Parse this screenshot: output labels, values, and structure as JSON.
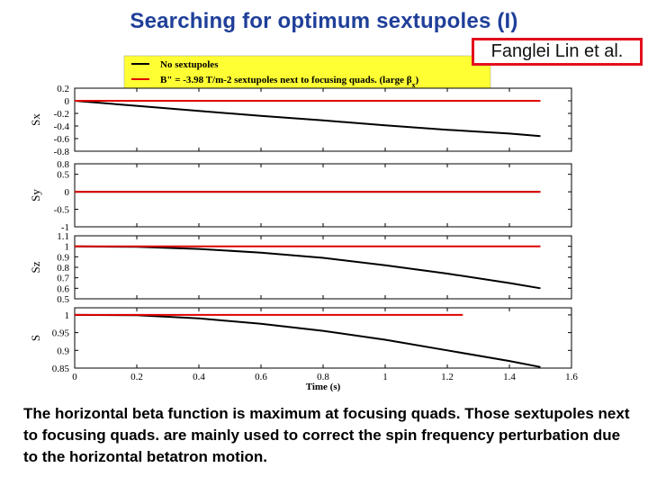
{
  "slide": {
    "title": "Searching for optimum sextupoles (I)",
    "author": "Fanglei Lin et al.",
    "caption": "The horizontal beta function is maximum at focusing quads. Those sextupoles next to focusing quads. are mainly used to correct the spin frequency perturbation due to the horizontal betatron motion."
  },
  "legend": {
    "entries": [
      {
        "label": "No sextupoles",
        "color": "#000000"
      },
      {
        "label": "B\" = -3.98 T/m-2 sextupoles next to focusing quads. (large β",
        "subscript": "x",
        "suffix": ")",
        "color": "#e00000"
      }
    ],
    "background": "#ffff33"
  },
  "colors": {
    "title": "#1f3f99",
    "author_border": "#e3101c",
    "series_no_sext": "#000000",
    "series_sext": "#e00000"
  },
  "chart_data": {
    "type": "line",
    "xlabel": "Time (s)",
    "x_ticks": [
      "0",
      "0.2",
      "0.4",
      "0.6",
      "0.8",
      "1",
      "1.2",
      "1.4",
      "1.6"
    ],
    "xlim": [
      0,
      1.6
    ],
    "panels": [
      {
        "ylabel": "Sx",
        "ylim": [
          -0.8,
          0.2
        ],
        "y_ticks": [
          "0.2",
          "0",
          "-0.2",
          "-0.4",
          "-0.6",
          "-0.8"
        ],
        "series": [
          {
            "x": [
              0,
              0.2,
              0.4,
              0.6,
              0.8,
              1.0,
              1.2,
              1.4,
              1.5
            ],
            "y": [
              0.0,
              -0.08,
              -0.16,
              -0.24,
              -0.31,
              -0.39,
              -0.46,
              -0.52,
              -0.56
            ]
          },
          {
            "x": [
              0,
              1.5
            ],
            "y": [
              0.0,
              0.0
            ]
          }
        ]
      },
      {
        "ylabel": "Sy",
        "ylim": [
          -1,
          0.8
        ],
        "y_ticks": [
          "0.8",
          "0.5",
          "0",
          "-0.5",
          "-1"
        ],
        "series": [
          {
            "x": [
              0,
              1.5
            ],
            "y": [
              0.0,
              0.0
            ]
          },
          {
            "x": [
              0,
              1.5
            ],
            "y": [
              0.0,
              0.0
            ]
          }
        ]
      },
      {
        "ylabel": "Sz",
        "ylim": [
          0.5,
          1.1
        ],
        "y_ticks": [
          "1.1",
          "1",
          "0.9",
          "0.8",
          "0.7",
          "0.6",
          "0.5"
        ],
        "series": [
          {
            "x": [
              0,
              0.2,
              0.4,
              0.6,
              0.8,
              1.0,
              1.2,
              1.4,
              1.5
            ],
            "y": [
              1.0,
              0.995,
              0.975,
              0.94,
              0.89,
              0.82,
              0.74,
              0.65,
              0.6
            ]
          },
          {
            "x": [
              0,
              1.5
            ],
            "y": [
              1.0,
              1.0
            ]
          }
        ]
      },
      {
        "ylabel": "S",
        "ylim": [
          0.85,
          1.02
        ],
        "y_ticks": [
          "1",
          "0.95",
          "0.9",
          "0.85"
        ],
        "series": [
          {
            "x": [
              0,
              0.2,
              0.4,
              0.6,
              0.8,
              1.0,
              1.2,
              1.4,
              1.5
            ],
            "y": [
              1.0,
              0.999,
              0.99,
              0.975,
              0.955,
              0.93,
              0.9,
              0.87,
              0.853
            ]
          },
          {
            "x": [
              0,
              1.25
            ],
            "y": [
              1.0,
              1.0
            ]
          }
        ]
      }
    ]
  }
}
